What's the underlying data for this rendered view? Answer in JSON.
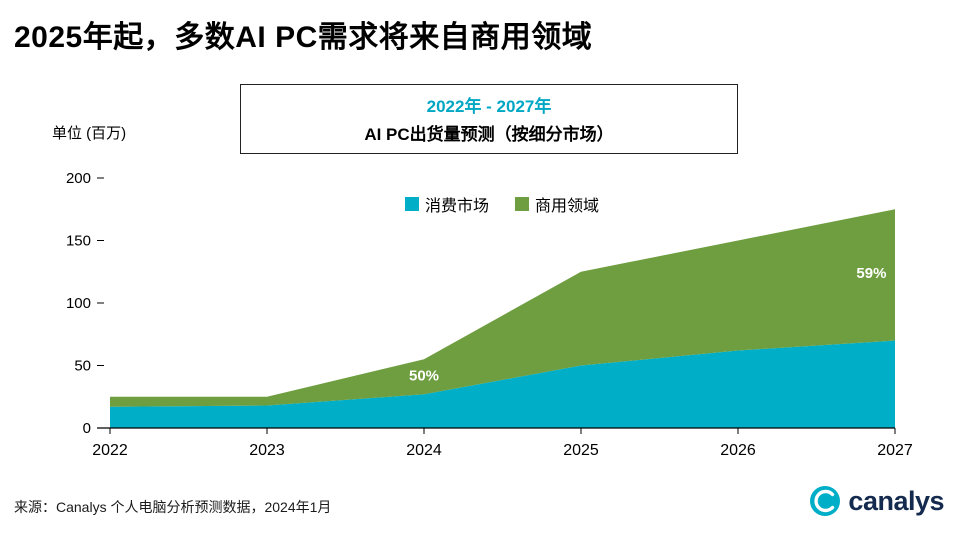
{
  "title": "2025年起，多数AI PC需求将来自商用领域",
  "subtitle": {
    "period": "2022年 - 2027年",
    "period_color": "#00A7C4",
    "description": "AI PC出货量预测（按细分市场）"
  },
  "source": "来源：Canalys 个人电脑分析预测数据，2024年1月",
  "logo": {
    "text": "canalys",
    "circle_color": "#00AEC7",
    "text_color": "#142A4E"
  },
  "chart_data": {
    "type": "area",
    "stacked": true,
    "title": "AI PC出货量预测（按细分市场）",
    "ylabel": "单位 (百万)",
    "x": [
      2022,
      2023,
      2024,
      2025,
      2026,
      2027
    ],
    "x_tick_labels": [
      "2022",
      "2023",
      "2024",
      "2025",
      "2026",
      "2027"
    ],
    "yticks": [
      0,
      50,
      100,
      150,
      200
    ],
    "ylim": [
      0,
      200
    ],
    "grid": false,
    "legend_position": "top-center",
    "series": [
      {
        "name": "消费市场",
        "color": "#00AEC7",
        "values": [
          17,
          18,
          27,
          50,
          62,
          70
        ]
      },
      {
        "name": "商用领域",
        "color": "#6E9E3F",
        "values": [
          8,
          7,
          28,
          75,
          88,
          105
        ]
      }
    ],
    "totals": [
      25,
      25,
      55,
      125,
      150,
      175
    ],
    "annotations": [
      {
        "text": "50%",
        "x": 2024,
        "y": 38,
        "color": "#FFFFFF"
      },
      {
        "text": "59%",
        "x": 2026.85,
        "y": 120,
        "color": "#FFFFFF"
      }
    ]
  }
}
